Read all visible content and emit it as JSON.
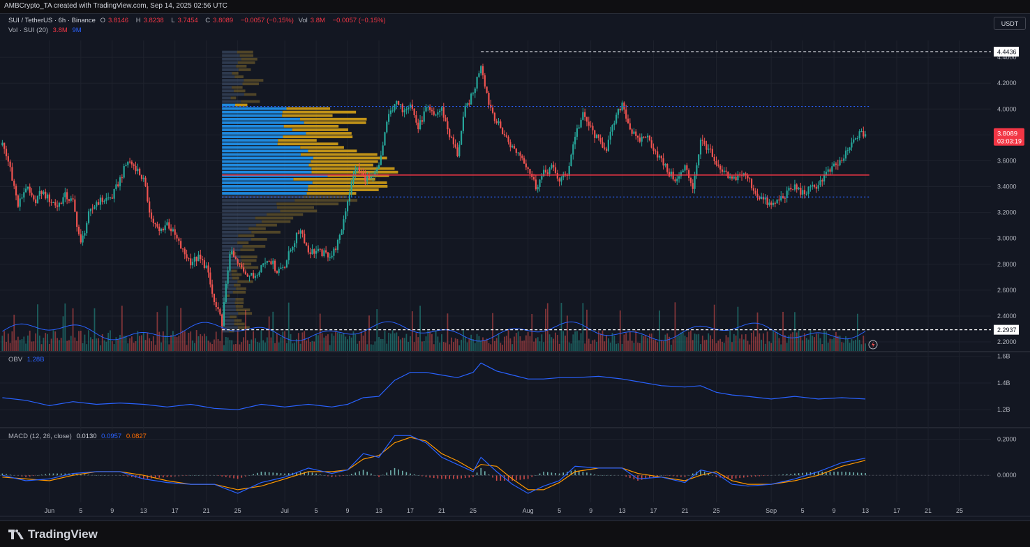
{
  "credit": "AMBCrypto_TA created with TradingView.com, Sep 14, 2025 02:56 UTC",
  "legend": {
    "symbol": "SUI / TetherUS · 6h · Binance",
    "o_label": "O",
    "o": "3.8146",
    "h_label": "H",
    "h": "3.8238",
    "l_label": "L",
    "l": "3.7454",
    "c_label": "C",
    "c": "3.8089",
    "change": "−0.0057 (−0.15%)",
    "vol_label": "Vol",
    "vol": "3.8M",
    "vol_change": "−0.0057 (−0.15%)"
  },
  "vol_legend": {
    "label": "Vol · SUI (20)",
    "v1": "3.8M",
    "v2": "9M"
  },
  "obv_legend": {
    "label": "OBV",
    "value": "1.28B"
  },
  "macd_legend": {
    "label": "MACD (12, 26, close)",
    "hist": "0.0130",
    "macd": "0.0957",
    "signal": "0.0827"
  },
  "currency": "USDT",
  "footer": "TradingView",
  "colors": {
    "up": "#26a69a",
    "down": "#ef5350",
    "blue": "#2962ff",
    "orange": "#ff9800",
    "poc": "#f23645",
    "va_blue": "#2196f3",
    "va_gold": "#d4a017",
    "bg": "#131722",
    "grid": "#1e222d"
  },
  "chart_data": [
    {
      "type": "line",
      "name": "price",
      "title": "SUI / TetherUS · 6h · Binance",
      "y_ticks": [
        "4.4000",
        "4.2000",
        "4.0000",
        "3.8000",
        "3.6000",
        "3.4000",
        "3.2000",
        "3.0000",
        "2.8000",
        "2.6000",
        "2.4000",
        "2.2000"
      ],
      "y_tick_values": [
        4.4,
        4.2,
        4.0,
        3.8,
        3.6,
        3.4,
        3.2,
        3.0,
        2.8,
        2.6,
        2.4,
        2.2
      ],
      "ylim": [
        2.13,
        4.53
      ],
      "x_ticks": [
        "Jun",
        "5",
        "9",
        "13",
        "17",
        "21",
        "25",
        "Jul",
        "5",
        "9",
        "13",
        "17",
        "21",
        "25",
        "Aug",
        "5",
        "9",
        "13",
        "17",
        "21",
        "25",
        "Sep",
        "5",
        "9",
        "13",
        "17",
        "21",
        "25"
      ],
      "x_tick_days": [
        0,
        4,
        8,
        12,
        16,
        20,
        24,
        30,
        34,
        38,
        42,
        46,
        50,
        54,
        61,
        65,
        69,
        73,
        77,
        81,
        85,
        92,
        96,
        100,
        104,
        108,
        112,
        116
      ],
      "x_start": "Jun 1",
      "xlim_days": [
        -6.3,
        120
      ],
      "close_path": [
        [
          -6,
          3.72
        ],
        [
          -5,
          3.55
        ],
        [
          -4,
          3.25
        ],
        [
          -3,
          3.4
        ],
        [
          -2,
          3.28
        ],
        [
          -1,
          3.36
        ],
        [
          0,
          3.3
        ],
        [
          1,
          3.25
        ],
        [
          2,
          3.33
        ],
        [
          3,
          3.28
        ],
        [
          4,
          2.95
        ],
        [
          5,
          3.18
        ],
        [
          6,
          3.28
        ],
        [
          7,
          3.3
        ],
        [
          8,
          3.32
        ],
        [
          9,
          3.46
        ],
        [
          10,
          3.6
        ],
        [
          11,
          3.55
        ],
        [
          12,
          3.45
        ],
        [
          13,
          3.15
        ],
        [
          14,
          3.05
        ],
        [
          15,
          3.12
        ],
        [
          16,
          3.02
        ],
        [
          17,
          2.9
        ],
        [
          18,
          2.82
        ],
        [
          19,
          2.85
        ],
        [
          20,
          2.78
        ],
        [
          21,
          2.5
        ],
        [
          22,
          2.35
        ],
        [
          23,
          2.9
        ],
        [
          24,
          2.8
        ],
        [
          25,
          2.74
        ],
        [
          26,
          2.7
        ],
        [
          27,
          2.79
        ],
        [
          28,
          2.85
        ],
        [
          29,
          2.75
        ],
        [
          30,
          2.8
        ],
        [
          31,
          2.95
        ],
        [
          32,
          3.08
        ],
        [
          33,
          2.9
        ],
        [
          34,
          2.9
        ],
        [
          35,
          2.88
        ],
        [
          36,
          2.87
        ],
        [
          37,
          3.0
        ],
        [
          38,
          3.3
        ],
        [
          39,
          3.55
        ],
        [
          40,
          3.48
        ],
        [
          41,
          3.45
        ],
        [
          42,
          3.55
        ],
        [
          43,
          3.9
        ],
        [
          44,
          4.05
        ],
        [
          45,
          4.0
        ],
        [
          46,
          4.05
        ],
        [
          47,
          3.85
        ],
        [
          48,
          4.0
        ],
        [
          49,
          3.95
        ],
        [
          50,
          4.0
        ],
        [
          51,
          3.8
        ],
        [
          52,
          3.65
        ],
        [
          53,
          4.0
        ],
        [
          54,
          4.12
        ],
        [
          55,
          4.35
        ],
        [
          56,
          4.05
        ],
        [
          57,
          3.9
        ],
        [
          58,
          3.8
        ],
        [
          59,
          3.7
        ],
        [
          60,
          3.65
        ],
        [
          61,
          3.55
        ],
        [
          62,
          3.4
        ],
        [
          63,
          3.5
        ],
        [
          64,
          3.55
        ],
        [
          65,
          3.45
        ],
        [
          66,
          3.5
        ],
        [
          67,
          3.8
        ],
        [
          68,
          3.95
        ],
        [
          69,
          3.85
        ],
        [
          70,
          3.75
        ],
        [
          71,
          3.7
        ],
        [
          72,
          3.9
        ],
        [
          73,
          4.05
        ],
        [
          74,
          3.85
        ],
        [
          75,
          3.75
        ],
        [
          76,
          3.8
        ],
        [
          77,
          3.7
        ],
        [
          78,
          3.6
        ],
        [
          79,
          3.5
        ],
        [
          80,
          3.45
        ],
        [
          81,
          3.55
        ],
        [
          82,
          3.4
        ],
        [
          83,
          3.75
        ],
        [
          84,
          3.7
        ],
        [
          85,
          3.55
        ],
        [
          86,
          3.5
        ],
        [
          87,
          3.45
        ],
        [
          88,
          3.5
        ],
        [
          89,
          3.47
        ],
        [
          90,
          3.35
        ],
        [
          91,
          3.3
        ],
        [
          92,
          3.25
        ],
        [
          93,
          3.3
        ],
        [
          94,
          3.35
        ],
        [
          95,
          3.4
        ],
        [
          96,
          3.35
        ],
        [
          97,
          3.38
        ],
        [
          98,
          3.42
        ],
        [
          99,
          3.5
        ],
        [
          100,
          3.55
        ],
        [
          101,
          3.6
        ],
        [
          102,
          3.7
        ],
        [
          103,
          3.8
        ],
        [
          104,
          3.81
        ]
      ],
      "horizontal_lines": [
        {
          "value": 4.4436,
          "label": "4.4436",
          "style": "dashed",
          "color": "#d1d4dc",
          "from_day": 55
        },
        {
          "value": 2.2937,
          "label": "2.2937",
          "style": "dashed",
          "color": "#ffffff",
          "from_day": 22
        },
        {
          "value": 4.02,
          "style": "dotted",
          "color": "#2962ff",
          "from_day": 22
        },
        {
          "value": 3.32,
          "style": "dotted",
          "color": "#2962ff",
          "from_day": 22
        },
        {
          "value": 3.49,
          "style": "solid",
          "color": "#f23645",
          "from_day": 22
        }
      ],
      "current_price": {
        "value": 3.8089,
        "label": "3.8089",
        "countdown": "03:03:19"
      }
    },
    {
      "type": "line",
      "name": "OBV",
      "y_ticks": [
        "1.6B",
        "1.4B",
        "1.2B"
      ],
      "y_tick_values": [
        1.6,
        1.4,
        1.2
      ],
      "ylim": [
        1.07,
        1.63
      ],
      "points": [
        [
          -6,
          1.29
        ],
        [
          -3,
          1.27
        ],
        [
          0,
          1.23
        ],
        [
          3,
          1.26
        ],
        [
          6,
          1.24
        ],
        [
          9,
          1.25
        ],
        [
          12,
          1.24
        ],
        [
          15,
          1.22
        ],
        [
          18,
          1.24
        ],
        [
          21,
          1.21
        ],
        [
          24,
          1.2
        ],
        [
          27,
          1.24
        ],
        [
          30,
          1.22
        ],
        [
          33,
          1.24
        ],
        [
          36,
          1.22
        ],
        [
          38,
          1.24
        ],
        [
          40,
          1.29
        ],
        [
          42,
          1.3
        ],
        [
          44,
          1.42
        ],
        [
          46,
          1.48
        ],
        [
          48,
          1.48
        ],
        [
          50,
          1.46
        ],
        [
          52,
          1.44
        ],
        [
          54,
          1.48
        ],
        [
          55,
          1.55
        ],
        [
          57,
          1.49
        ],
        [
          59,
          1.46
        ],
        [
          61,
          1.43
        ],
        [
          63,
          1.43
        ],
        [
          65,
          1.44
        ],
        [
          67,
          1.44
        ],
        [
          70,
          1.45
        ],
        [
          73,
          1.43
        ],
        [
          75,
          1.41
        ],
        [
          78,
          1.38
        ],
        [
          81,
          1.37
        ],
        [
          83,
          1.38
        ],
        [
          85,
          1.33
        ],
        [
          87,
          1.31
        ],
        [
          89,
          1.3
        ],
        [
          92,
          1.28
        ],
        [
          95,
          1.3
        ],
        [
          98,
          1.28
        ],
        [
          101,
          1.29
        ],
        [
          104,
          1.28
        ]
      ]
    },
    {
      "type": "line",
      "name": "MACD",
      "y_ticks": [
        "0.2000",
        "0.0000"
      ],
      "y_tick_values": [
        0.2,
        0.0
      ],
      "ylim": [
        -0.15,
        0.26
      ],
      "macd_points": [
        [
          -6,
          0.0
        ],
        [
          -3,
          -0.03
        ],
        [
          0,
          -0.02
        ],
        [
          3,
          0.01
        ],
        [
          6,
          0.02
        ],
        [
          9,
          0.02
        ],
        [
          12,
          -0.02
        ],
        [
          15,
          -0.04
        ],
        [
          18,
          -0.05
        ],
        [
          21,
          -0.05
        ],
        [
          24,
          -0.1
        ],
        [
          27,
          -0.04
        ],
        [
          30,
          -0.01
        ],
        [
          33,
          0.04
        ],
        [
          36,
          0.01
        ],
        [
          38,
          0.03
        ],
        [
          40,
          0.12
        ],
        [
          42,
          0.1
        ],
        [
          44,
          0.22
        ],
        [
          46,
          0.22
        ],
        [
          48,
          0.18
        ],
        [
          50,
          0.1
        ],
        [
          52,
          0.06
        ],
        [
          54,
          0.02
        ],
        [
          55,
          0.1
        ],
        [
          57,
          0.02
        ],
        [
          59,
          -0.05
        ],
        [
          61,
          -0.1
        ],
        [
          63,
          -0.06
        ],
        [
          65,
          -0.03
        ],
        [
          67,
          0.05
        ],
        [
          70,
          0.04
        ],
        [
          73,
          0.04
        ],
        [
          75,
          -0.02
        ],
        [
          78,
          -0.01
        ],
        [
          81,
          -0.04
        ],
        [
          83,
          0.03
        ],
        [
          85,
          0.01
        ],
        [
          87,
          -0.05
        ],
        [
          89,
          -0.06
        ],
        [
          92,
          -0.05
        ],
        [
          95,
          -0.02
        ],
        [
          98,
          0.02
        ],
        [
          101,
          0.07
        ],
        [
          104,
          0.095
        ]
      ],
      "signal_points": [
        [
          -6,
          -0.01
        ],
        [
          -3,
          -0.02
        ],
        [
          0,
          -0.03
        ],
        [
          3,
          0.0
        ],
        [
          6,
          0.02
        ],
        [
          9,
          0.02
        ],
        [
          12,
          0.0
        ],
        [
          15,
          -0.03
        ],
        [
          18,
          -0.05
        ],
        [
          21,
          -0.05
        ],
        [
          24,
          -0.08
        ],
        [
          27,
          -0.06
        ],
        [
          30,
          -0.02
        ],
        [
          33,
          0.02
        ],
        [
          36,
          0.02
        ],
        [
          38,
          0.03
        ],
        [
          40,
          0.09
        ],
        [
          42,
          0.11
        ],
        [
          44,
          0.18
        ],
        [
          46,
          0.21
        ],
        [
          48,
          0.19
        ],
        [
          50,
          0.12
        ],
        [
          52,
          0.08
        ],
        [
          54,
          0.03
        ],
        [
          55,
          0.06
        ],
        [
          57,
          0.05
        ],
        [
          59,
          -0.02
        ],
        [
          61,
          -0.08
        ],
        [
          63,
          -0.08
        ],
        [
          65,
          -0.04
        ],
        [
          67,
          0.02
        ],
        [
          70,
          0.04
        ],
        [
          73,
          0.04
        ],
        [
          75,
          0.01
        ],
        [
          78,
          -0.01
        ],
        [
          81,
          -0.03
        ],
        [
          83,
          0.0
        ],
        [
          85,
          0.02
        ],
        [
          87,
          -0.03
        ],
        [
          89,
          -0.05
        ],
        [
          92,
          -0.05
        ],
        [
          95,
          -0.03
        ],
        [
          98,
          0.0
        ],
        [
          101,
          0.05
        ],
        [
          104,
          0.083
        ]
      ]
    }
  ]
}
